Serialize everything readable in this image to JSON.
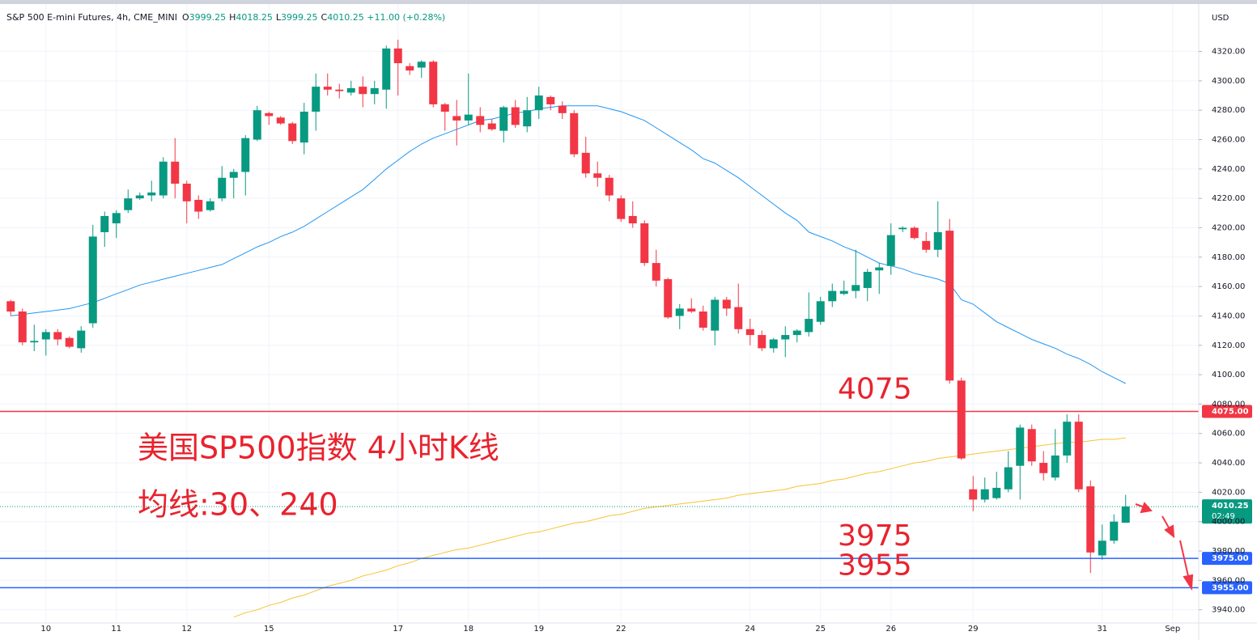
{
  "chart_data": {
    "type": "candlestick",
    "title": "S&P 500 E-mini Futures, 4h, CME_MINI",
    "ohlc_legend": [
      {
        "label": "O",
        "value": "3999.25"
      },
      {
        "label": "H",
        "value": "4018.25"
      },
      {
        "label": "L",
        "value": "3999.25"
      },
      {
        "label": "C",
        "value": "4010.25"
      }
    ],
    "change": "+11.00 (+0.28%)",
    "currency": "USD",
    "up_color": "#089981",
    "down_color": "#f23645",
    "grid": true,
    "categories": [
      null,
      null,
      null,
      "10",
      null,
      null,
      null,
      null,
      null,
      "11",
      null,
      null,
      null,
      null,
      null,
      "12",
      null,
      null,
      null,
      null,
      null,
      null,
      "15",
      null,
      null,
      null,
      null,
      null,
      null,
      null,
      null,
      null,
      null,
      "17",
      null,
      null,
      null,
      null,
      null,
      "18",
      null,
      null,
      null,
      null,
      null,
      "19",
      null,
      null,
      null,
      null,
      null,
      null,
      "22",
      null,
      null,
      null,
      null,
      null,
      null,
      null,
      null,
      null,
      null,
      "24",
      null,
      null,
      null,
      null,
      null,
      "25",
      null,
      null,
      null,
      null,
      null,
      "26",
      null,
      null,
      null,
      null,
      null,
      null,
      "29",
      null,
      null,
      null,
      null,
      null,
      null,
      null,
      null,
      null,
      null,
      "31",
      null,
      null,
      null,
      null,
      null,
      "Sep",
      null
    ],
    "open": [
      4150,
      4143,
      4122,
      4124,
      4129,
      4125,
      4118,
      4135,
      4197,
      4203,
      4212,
      4220,
      4222,
      4222,
      4245,
      4230,
      4219,
      4212,
      4220,
      4234,
      4238,
      4260,
      4278,
      4275,
      4271,
      4258,
      4279,
      4296,
      4294,
      4292,
      4296,
      4291,
      4294,
      4322,
      4310,
      4309,
      4313,
      4284,
      4276,
      4273,
      4276,
      4271,
      4266,
      4282,
      4269,
      4280,
      4289,
      4283,
      4278,
      4251,
      4237,
      4234,
      4220,
      4208,
      4203,
      4176,
      4165,
      4140,
      4145,
      4143,
      4130,
      4151,
      4146,
      4131,
      4127,
      4118,
      4124,
      4127,
      4129,
      4136,
      4150,
      4155,
      4157,
      4159,
      4171,
      4174,
      4199,
      4200,
      4191,
      4185,
      4198,
      4096,
      4022,
      4015,
      4016,
      4022,
      4038,
      4063,
      4040,
      4030,
      4045,
      4068,
      4024,
      3977,
      3987,
      3999.25,
      null,
      null,
      null,
      null,
      null
    ],
    "high": [
      4151,
      4145,
      4134,
      4131,
      4131,
      4126,
      4133,
      4202,
      4211,
      4212,
      4226,
      4224,
      4232,
      4248,
      4261,
      4232,
      4222,
      4220,
      4242,
      4240,
      4263,
      4283,
      4279,
      4276,
      4272,
      4285,
      4305,
      4305,
      4298,
      4300,
      4303,
      4300,
      4324,
      4328,
      4312,
      4314,
      4314,
      4285,
      4287,
      4305,
      4282,
      4274,
      4283,
      4287,
      4289,
      4296,
      4290,
      4286,
      4280,
      4262,
      4245,
      4236,
      4222,
      4218,
      4205,
      4185,
      4166,
      4148,
      4152,
      4147,
      4153,
      4153,
      4162,
      4138,
      4130,
      4125,
      4133,
      4131,
      4156,
      4153,
      4162,
      4164,
      4185,
      4172,
      4176,
      4203,
      4201,
      4201,
      4197,
      4218,
      4206,
      4098,
      4031,
      4030,
      4034,
      4048,
      4066,
      4066,
      4048,
      4063,
      4073,
      4073,
      4028,
      3998,
      4005,
      4018.25,
      null,
      null,
      null,
      null,
      null
    ],
    "low": [
      4140,
      4120,
      4116,
      4113,
      4120,
      4118,
      4115,
      4132,
      4187,
      4193,
      4210,
      4219,
      4218,
      4220,
      4220,
      4203,
      4206,
      4211,
      4218,
      4220,
      4222,
      4259,
      4270,
      4270,
      4257,
      4250,
      4266,
      4290,
      4288,
      4290,
      4282,
      4284,
      4281,
      4290,
      4304,
      4302,
      4282,
      4266,
      4256,
      4270,
      4265,
      4266,
      4258,
      4268,
      4265,
      4274,
      4280,
      4274,
      4248,
      4234,
      4228,
      4218,
      4204,
      4200,
      4174,
      4160,
      4138,
      4131,
      4142,
      4130,
      4120,
      4140,
      4128,
      4120,
      4116,
      4115,
      4112,
      4122,
      4126,
      4134,
      4146,
      4154,
      4152,
      4150,
      4155,
      4168,
      4197,
      4192,
      4183,
      4180,
      4094,
      4042,
      4007,
      4013,
      4015,
      4020,
      4015,
      4038,
      4028,
      4028,
      4040,
      4020,
      3965,
      3974,
      3985,
      3999.25,
      null,
      null,
      null,
      null,
      null
    ],
    "close": [
      4143,
      4122,
      4123,
      4129,
      4124,
      4119,
      4130,
      4194,
      4208,
      4210,
      4220,
      4222,
      4224,
      4245,
      4230,
      4218,
      4211,
      4218,
      4234,
      4238,
      4261,
      4280,
      4276,
      4271,
      4259,
      4279,
      4296,
      4294,
      4293,
      4295,
      4291,
      4295,
      4322,
      4312,
      4307,
      4313,
      4284,
      4279,
      4273,
      4277,
      4270,
      4267,
      4282,
      4270,
      4280,
      4290,
      4284,
      4278,
      4250,
      4237,
      4234,
      4222,
      4206,
      4203,
      4176,
      4164,
      4139,
      4145,
      4143,
      4132,
      4151,
      4145,
      4131,
      4127,
      4118,
      4124,
      4127,
      4130,
      4138,
      4150,
      4157,
      4157,
      4161,
      4170,
      4173,
      4195,
      4200,
      4193,
      4185,
      4197,
      4096,
      4043,
      4015,
      4022,
      4023,
      4037,
      4064,
      4041,
      4033,
      4045,
      4068,
      4022,
      3979,
      3987,
      4000,
      4010.25,
      null,
      null,
      null,
      null,
      null
    ],
    "lines": [
      {
        "color": "#2196f3",
        "values": [
          4140,
          4141,
          4142,
          4143,
          4144,
          4145,
          4147,
          4149,
          4152,
          4155,
          4158,
          4161,
          4163,
          4165,
          4167,
          4169,
          4171,
          4173,
          4175,
          4179,
          4183,
          4187,
          4190,
          4194,
          4197,
          4201,
          4206,
          4211,
          4216,
          4221,
          4226,
          4233,
          4240,
          4246,
          4252,
          4257,
          4261,
          4264,
          4267,
          4270,
          4273,
          4274,
          4276,
          4278,
          4279,
          4281,
          4282,
          4283,
          4283,
          4283,
          4283,
          4281,
          4279,
          4276,
          4273,
          4268,
          4263,
          4258,
          4253,
          4247,
          4244,
          4239,
          4234,
          4228,
          4222,
          4216,
          4210,
          4205,
          4197,
          4194,
          4191,
          4187,
          4184,
          4180,
          4176,
          4174,
          4172,
          4169,
          4167,
          4165,
          4162,
          4151,
          4148,
          4142,
          4136,
          4132,
          4128,
          4124,
          4121,
          4118,
          4114,
          4111,
          4107,
          4102,
          4098,
          4094,
          null,
          null,
          null,
          null,
          null
        ]
      },
      {
        "color": "#f7c331",
        "values": [
          null,
          null,
          null,
          null,
          null,
          null,
          null,
          null,
          null,
          null,
          null,
          null,
          null,
          null,
          null,
          null,
          null,
          null,
          null,
          3935,
          3938,
          3940,
          3943,
          3945,
          3948,
          3950,
          3953,
          3956,
          3958,
          3960,
          3963,
          3965,
          3967,
          3970,
          3972,
          3975,
          3977,
          3979,
          3981,
          3982,
          3984,
          3986,
          3988,
          3990,
          3992,
          3993,
          3995,
          3997,
          3999,
          4000,
          4002,
          4004,
          4005,
          4007,
          4009,
          4010,
          4011,
          4012,
          4013,
          4014,
          4015,
          4016,
          4018,
          4019,
          4020,
          4021,
          4022,
          4024,
          4025,
          4026,
          4028,
          4029,
          4031,
          4033,
          4034,
          4036,
          4038,
          4040,
          4041,
          4043,
          4044,
          4045,
          4046,
          4047,
          4048,
          4049,
          4050,
          4051,
          4052,
          4053,
          4054,
          4054,
          4055,
          4056,
          4056,
          4057,
          null,
          null,
          null,
          null,
          null
        ]
      }
    ],
    "levels": [
      {
        "value": 4075,
        "label": "4075.00",
        "color": "#f23645",
        "annotation": "4075"
      },
      {
        "value": 3975,
        "label": "3975.00",
        "color": "#2962ff",
        "annotation": "3975"
      },
      {
        "value": 3955,
        "label": "3955.00",
        "color": "#2962ff",
        "annotation": "3955"
      }
    ],
    "last_price": {
      "value": 4010.25,
      "label": "4010.25",
      "countdown": "02:49",
      "color": "#089981"
    },
    "annotations": [
      "美国SP500指数 4小时K线",
      "均线:30、240"
    ],
    "ylim": [
      3931,
      4355
    ],
    "yticks": [
      {
        "value": 3940,
        "label": "3940.00"
      },
      {
        "value": 3960,
        "label": "3960.00"
      },
      {
        "value": 3980,
        "label": "3980.00"
      },
      {
        "value": 4000,
        "label": "4000.00"
      },
      {
        "value": 4020,
        "label": "4020.00"
      },
      {
        "value": 4040,
        "label": "4040.00"
      },
      {
        "value": 4060,
        "label": "4060.00"
      },
      {
        "value": 4080,
        "label": "4080.00"
      },
      {
        "value": 4100,
        "label": "4100.00"
      },
      {
        "value": 4120,
        "label": "4120.00"
      },
      {
        "value": 4140,
        "label": "4140.00"
      },
      {
        "value": 4160,
        "label": "4160.00"
      },
      {
        "value": 4180,
        "label": "4180.00"
      },
      {
        "value": 4200,
        "label": "4200.00"
      },
      {
        "value": 4220,
        "label": "4220.00"
      },
      {
        "value": 4240,
        "label": "4240.00"
      },
      {
        "value": 4260,
        "label": "4260.00"
      },
      {
        "value": 4280,
        "label": "4280.00"
      },
      {
        "value": 4300,
        "label": "4300.00"
      },
      {
        "value": 4320,
        "label": "4320.00"
      }
    ]
  }
}
